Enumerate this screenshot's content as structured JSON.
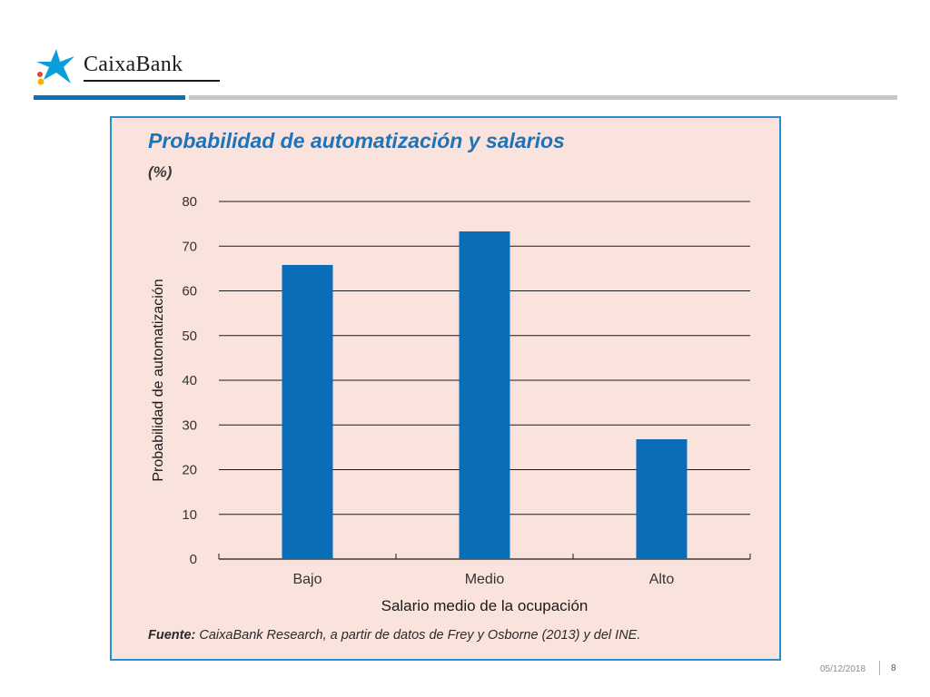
{
  "brand": {
    "name": "CaixaBank",
    "star_color": "#0a9fd9",
    "dot_colors": [
      "#e4452b",
      "#f3b300"
    ]
  },
  "header": {
    "rule_colors": {
      "blue": "#0a70b8",
      "gray": "#c4c6c9"
    }
  },
  "footer": {
    "date": "05/12/2018",
    "page": "8"
  },
  "source": {
    "label": "Fuente:",
    "text": " CaixaBank Research, a partir de datos de Frey y Osborne (2013) y del INE."
  },
  "colors": {
    "panel_bg": "#fbe3dd",
    "panel_border": "#2a8fcf",
    "bar": "#0a6db7",
    "title": "#1f73b7",
    "grid": "#1a1a1a"
  },
  "chart_data": {
    "type": "bar",
    "title": "Probabilidad de automatización y salarios",
    "unit": "(%)",
    "xlabel": "Salario medio de la ocupación",
    "ylabel": "Probabilidad de automatización",
    "categories": [
      "Bajo",
      "Medio",
      "Alto"
    ],
    "values": [
      65.8,
      73.3,
      26.8
    ],
    "yticks": [
      0,
      10,
      20,
      30,
      40,
      50,
      60,
      70,
      80
    ],
    "ylim": [
      0,
      80
    ],
    "grid": true,
    "legend": "none"
  }
}
